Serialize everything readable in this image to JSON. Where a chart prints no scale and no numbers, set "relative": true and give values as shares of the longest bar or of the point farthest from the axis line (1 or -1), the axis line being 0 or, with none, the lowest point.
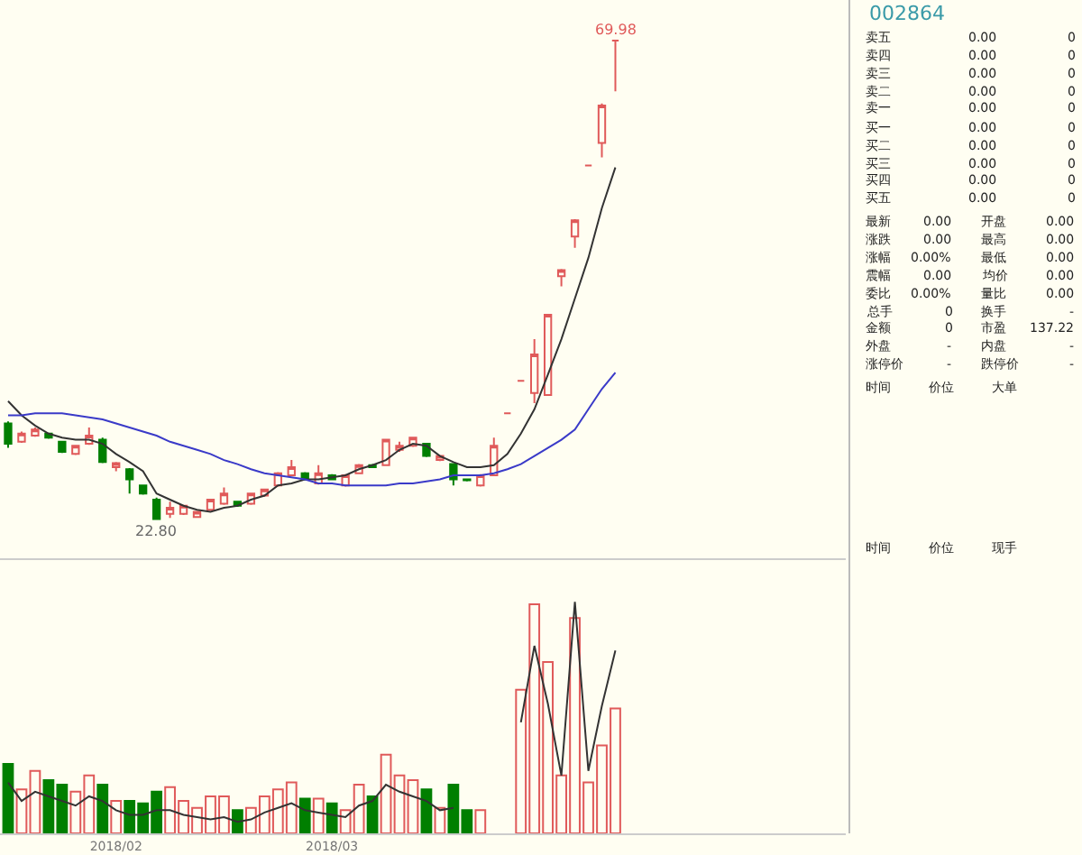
{
  "chart_data": [
    {
      "type": "candlestick",
      "tick_labels": false,
      "categories": [
        null,
        null,
        null,
        null,
        null,
        null,
        null,
        null,
        null,
        null,
        null,
        null,
        null,
        null,
        null,
        null,
        null,
        null,
        null,
        null,
        null,
        null,
        null,
        null,
        null,
        null,
        null,
        null,
        null,
        null,
        null,
        null,
        null,
        null,
        null,
        null,
        null,
        null,
        null,
        null,
        null,
        null,
        null,
        null,
        null,
        null
      ],
      "ohlc": [
        [
          32.3,
          32.5,
          29.9,
          30.3
        ],
        [
          30.5,
          31.5,
          30.4,
          31.3
        ],
        [
          31.1,
          31.9,
          31.0,
          31.7
        ],
        [
          31.3,
          31.4,
          30.8,
          30.9
        ],
        [
          30.5,
          30.6,
          29.4,
          29.5
        ],
        [
          29.3,
          30.2,
          29.2,
          30.1
        ],
        [
          30.3,
          31.9,
          30.2,
          31.1
        ],
        [
          30.7,
          30.9,
          28.4,
          28.5
        ],
        [
          28.0,
          28.5,
          27.6,
          28.4
        ],
        [
          27.8,
          27.9,
          25.4,
          26.8
        ],
        [
          26.2,
          26.3,
          25.3,
          25.4
        ],
        [
          24.8,
          25.0,
          22.8,
          22.9
        ],
        [
          23.4,
          24.6,
          23.0,
          24.0
        ],
        [
          23.4,
          24.3,
          23.3,
          24.2
        ],
        [
          23.1,
          23.7,
          23.0,
          23.6
        ],
        [
          23.8,
          24.9,
          23.7,
          24.8
        ],
        [
          24.4,
          26.0,
          24.3,
          25.4
        ],
        [
          24.6,
          24.7,
          24.1,
          24.2
        ],
        [
          24.4,
          25.5,
          24.3,
          25.4
        ],
        [
          25.2,
          25.9,
          25.1,
          25.8
        ],
        [
          26.2,
          27.5,
          26.1,
          27.4
        ],
        [
          27.2,
          28.7,
          27.1,
          28.0
        ],
        [
          27.4,
          27.5,
          26.7,
          26.8
        ],
        [
          26.4,
          28.2,
          26.3,
          27.4
        ],
        [
          27.2,
          27.3,
          26.7,
          26.8
        ],
        [
          26.2,
          27.3,
          26.1,
          27.2
        ],
        [
          27.4,
          28.3,
          27.3,
          28.2
        ],
        [
          28.2,
          28.3,
          27.9,
          28.0
        ],
        [
          28.2,
          30.8,
          28.1,
          30.7
        ],
        [
          29.7,
          30.5,
          29.5,
          30.1
        ],
        [
          30.1,
          31.0,
          30.0,
          30.9
        ],
        [
          30.3,
          30.4,
          29.0,
          29.1
        ],
        [
          28.7,
          29.2,
          28.6,
          29.1
        ],
        [
          28.3,
          28.4,
          26.2,
          26.8
        ],
        [
          26.8,
          26.9,
          26.6,
          26.7
        ],
        [
          26.2,
          27.3,
          26.1,
          27.2
        ],
        [
          27.2,
          30.9,
          27.1,
          30.1
        ],
        [
          33.3,
          33.3,
          33.3,
          33.3
        ],
        [
          36.5,
          36.5,
          36.5,
          36.5
        ],
        [
          35.3,
          40.6,
          34.3,
          39.1
        ],
        [
          35.1,
          43.1,
          35.0,
          43.0
        ],
        [
          46.8,
          47.5,
          45.8,
          47.4
        ],
        [
          50.7,
          52.4,
          49.6,
          52.3
        ],
        [
          57.7,
          57.7,
          57.7,
          57.7
        ],
        [
          59.9,
          63.8,
          58.5,
          63.6
        ],
        [
          69.98,
          69.98,
          65.0,
          69.98
        ]
      ],
      "colors": [
        "#007f00",
        "#e05a5a",
        "#e05a5a",
        "#007f00",
        "#007f00",
        "#e05a5a",
        "#e05a5a",
        "#007f00",
        "#e05a5a",
        "#007f00",
        "#007f00",
        "#007f00",
        "#e05a5a",
        "#e05a5a",
        "#e05a5a",
        "#e05a5a",
        "#e05a5a",
        "#007f00",
        "#e05a5a",
        "#e05a5a",
        "#e05a5a",
        "#e05a5a",
        "#007f00",
        "#e05a5a",
        "#007f00",
        "#e05a5a",
        "#e05a5a",
        "#007f00",
        "#e05a5a",
        "#e05a5a",
        "#e05a5a",
        "#007f00",
        "#e05a5a",
        "#007f00",
        "#007f00",
        "#e05a5a",
        "#e05a5a",
        "#e05a5a",
        "#e05a5a",
        "#e05a5a",
        "#e05a5a",
        "#e05a5a",
        "#e05a5a",
        "#e05a5a",
        "#e05a5a",
        "#e05a5a"
      ],
      "series": [
        {
          "type": "line",
          "color": "#333333",
          "values": [
            34.5,
            33.1,
            32.1,
            31.3,
            30.9,
            30.7,
            30.7,
            30.3,
            29.3,
            28.5,
            27.6,
            25.4,
            24.8,
            24.2,
            23.8,
            23.6,
            24.0,
            24.2,
            24.8,
            25.2,
            26.2,
            26.4,
            26.8,
            26.8,
            27.0,
            27.2,
            27.8,
            28.2,
            28.7,
            29.7,
            30.3,
            30.1,
            29.1,
            28.5,
            28.0,
            28.0,
            28.2,
            29.3,
            31.3,
            33.7,
            37.1,
            40.6,
            44.6,
            48.6,
            53.5,
            57.5
          ]
        },
        {
          "type": "line",
          "color": "#3a3ac8",
          "values": [
            33.1,
            33.1,
            33.3,
            33.3,
            33.3,
            33.1,
            32.9,
            32.7,
            32.3,
            31.9,
            31.5,
            31.1,
            30.5,
            30.1,
            29.7,
            29.3,
            28.7,
            28.3,
            27.8,
            27.4,
            27.2,
            27.0,
            26.8,
            26.4,
            26.4,
            26.2,
            26.2,
            26.2,
            26.2,
            26.4,
            26.4,
            26.6,
            26.8,
            27.2,
            27.2,
            27.2,
            27.4,
            27.8,
            28.3,
            29.1,
            29.9,
            30.7,
            31.7,
            33.7,
            35.7,
            37.3
          ]
        }
      ],
      "annotations": [
        {
          "text": "69.98",
          "y": 69.98
        },
        {
          "text": "22.80",
          "y": 22.8
        }
      ]
    },
    {
      "type": "bar",
      "relative": true,
      "tick_labels": "x",
      "categories": [
        null,
        null,
        null,
        null,
        null,
        null,
        null,
        null,
        "2018/02",
        null,
        null,
        null,
        null,
        null,
        null,
        null,
        null,
        null,
        null,
        null,
        null,
        null,
        null,
        null,
        "2018/03",
        null,
        null,
        null,
        null,
        null,
        null,
        null,
        null,
        null,
        null,
        null,
        null,
        null,
        null,
        null,
        null,
        null,
        null,
        null,
        null,
        null
      ],
      "series": [
        {
          "type": "bar",
          "colors": [
            "#007f00",
            "#e05a5a",
            "#e05a5a",
            "#007f00",
            "#007f00",
            "#e05a5a",
            "#e05a5a",
            "#007f00",
            "#e05a5a",
            "#007f00",
            "#007f00",
            "#007f00",
            "#e05a5a",
            "#e05a5a",
            "#e05a5a",
            "#e05a5a",
            "#e05a5a",
            "#007f00",
            "#e05a5a",
            "#e05a5a",
            "#e05a5a",
            "#e05a5a",
            "#007f00",
            "#e05a5a",
            "#007f00",
            "#e05a5a",
            "#e05a5a",
            "#007f00",
            "#e05a5a",
            "#e05a5a",
            "#e05a5a",
            "#007f00",
            "#e05a5a",
            "#007f00",
            "#007f00",
            "#e05a5a",
            "#e05a5a",
            "#e05a5a",
            "#e05a5a",
            "#e05a5a",
            "#e05a5a",
            "#e05a5a",
            "#e05a5a",
            "#e05a5a",
            "#e05a5a",
            "#e05a5a"
          ],
          "values": [
            0.3,
            0.19,
            0.27,
            0.23,
            0.21,
            0.18,
            0.25,
            0.21,
            0.14,
            0.14,
            0.13,
            0.18,
            0.2,
            0.14,
            0.11,
            0.16,
            0.16,
            0.1,
            0.11,
            0.16,
            0.19,
            0.22,
            0.15,
            0.15,
            0.13,
            0.1,
            0.21,
            0.16,
            0.34,
            0.25,
            0.23,
            0.19,
            0.11,
            0.21,
            0.1,
            0.1,
            null,
            null,
            0.62,
            0.99,
            0.74,
            0.25,
            0.93,
            0.22,
            0.38,
            0.54
          ]
        },
        {
          "type": "line",
          "color": "#333333",
          "values": [
            0.22,
            0.14,
            0.18,
            0.16,
            0.14,
            0.12,
            0.16,
            0.14,
            0.1,
            0.08,
            0.08,
            0.1,
            0.1,
            0.08,
            0.07,
            0.06,
            0.07,
            0.05,
            0.06,
            0.09,
            0.11,
            0.13,
            0.1,
            0.09,
            0.08,
            0.07,
            0.12,
            0.14,
            0.21,
            0.18,
            0.16,
            0.14,
            0.1,
            0.11,
            null,
            null,
            null,
            null,
            0.48,
            0.81,
            0.56,
            0.25,
            1,
            0.27,
            0.55,
            0.79
          ]
        }
      ]
    },
    {
      "type": "other",
      "title": "002864",
      "annotations": [
        "卖五",
        "0.00",
        "0",
        "卖四",
        "0.00",
        "0",
        "卖三",
        "0.00",
        "0",
        "卖二",
        "0.00",
        "0",
        "卖一",
        "0.00",
        "0",
        "买一",
        "0.00",
        "0",
        "买二",
        "0.00",
        "0",
        "买三",
        "0.00",
        "0",
        "买四",
        "0.00",
        "0",
        "买五",
        "0.00",
        "0",
        "最新",
        "0.00",
        "开盘",
        "0.00",
        "涨跌",
        "0.00",
        "最高",
        "0.00",
        "涨幅",
        "0.00%",
        "最低",
        "0.00",
        "震幅",
        "0.00",
        "均价",
        "0.00",
        "委比",
        "0.00%",
        "量比",
        "0.00",
        "总手",
        "0",
        "换手",
        "-",
        "金额",
        "0",
        "市盈",
        "137.22",
        "外盘",
        "-",
        "内盘",
        "-",
        "涨停价",
        "-",
        "跌停价",
        "-",
        "时间",
        "价位",
        "大单",
        "时间",
        "价位",
        "现手"
      ]
    }
  ]
}
